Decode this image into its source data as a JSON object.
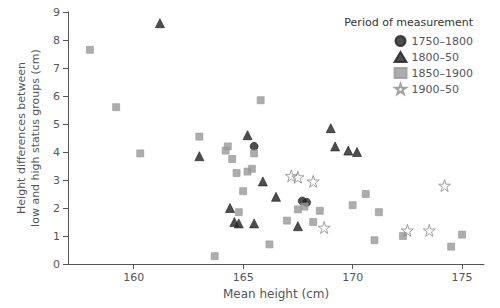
{
  "chart_data": {
    "type": "scatter",
    "xlabel": "Mean height (cm)",
    "ylabel": "Height differences between\nlow and high status groups (cm)",
    "xlim": [
      157,
      176
    ],
    "ylim": [
      0,
      9
    ],
    "xticks": [
      160,
      165,
      170,
      175
    ],
    "yticks": [
      0,
      1,
      2,
      3,
      4,
      5,
      6,
      7,
      8,
      9
    ],
    "grid": false,
    "legend": "upper right",
    "legend_title": "Period of measurement",
    "series": [
      {
        "name": "1750–1800",
        "marker": "circle",
        "color": "#222222",
        "x": [
          165.5,
          167.7,
          167.9
        ],
        "y": [
          4.2,
          2.25,
          2.2
        ]
      },
      {
        "name": "1800–50",
        "marker": "triangle",
        "color": "#222222",
        "x": [
          161.2,
          163.0,
          164.4,
          164.6,
          164.8,
          165.2,
          165.5,
          165.9,
          166.5,
          167.5,
          169.0,
          169.2,
          169.8,
          170.2
        ],
        "y": [
          8.6,
          3.85,
          2.0,
          1.5,
          1.45,
          4.6,
          1.45,
          2.95,
          2.4,
          1.35,
          4.85,
          4.2,
          4.05,
          4.0
        ]
      },
      {
        "name": "1850–1900",
        "marker": "square",
        "color": "#999999",
        "x": [
          158.0,
          159.2,
          160.3,
          163.0,
          163.7,
          164.2,
          164.3,
          164.5,
          164.7,
          164.8,
          165.0,
          165.2,
          165.4,
          165.5,
          165.8,
          166.2,
          167.0,
          167.5,
          167.8,
          168.2,
          168.5,
          170.0,
          170.6,
          171.0,
          171.2,
          172.3,
          174.5,
          175.0
        ],
        "y": [
          7.65,
          5.6,
          3.95,
          4.55,
          0.28,
          4.05,
          4.2,
          3.75,
          3.25,
          1.85,
          2.6,
          3.3,
          3.4,
          3.95,
          5.85,
          0.7,
          1.55,
          1.95,
          2.05,
          1.5,
          1.9,
          2.1,
          2.5,
          0.85,
          1.85,
          1.0,
          0.62,
          1.05
        ]
      },
      {
        "name": "1900–50",
        "marker": "open_star",
        "color": "#888888",
        "x": [
          167.2,
          167.5,
          168.2,
          168.7,
          172.5,
          173.5,
          174.2
        ],
        "y": [
          3.15,
          3.1,
          2.95,
          1.3,
          1.2,
          1.2,
          2.8
        ]
      }
    ]
  }
}
